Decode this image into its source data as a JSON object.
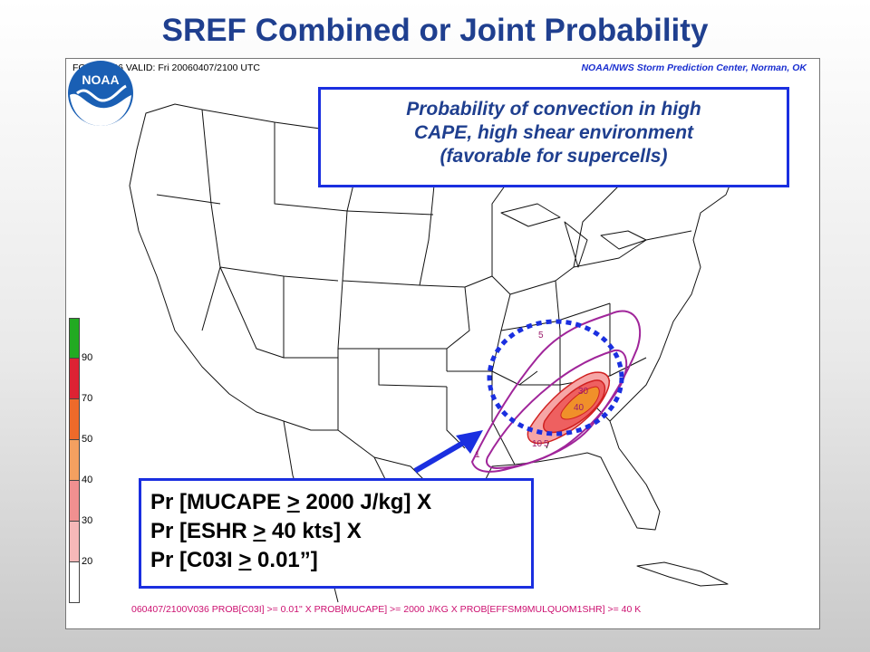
{
  "slide": {
    "title": "SREF Combined or Joint Probability"
  },
  "map": {
    "forecast_label": "FCST: F036  VALID: Fri  20060407/2100 UTC",
    "credit": "NOAA/NWS Storm Prediction Center, Norman, OK",
    "footer": "060407/2100V036 PROB[C03I] >= 0.01\" X PROB[MUCAPE] >= 2000 J/KG X PROB[EFFSM9MULQUOM1SHR] >= 40 K",
    "contour_labels": [
      "5",
      "30",
      "40",
      "10",
      "5",
      "1"
    ],
    "contour_colors": {
      "outer": "#a0259a",
      "light_fill": "#f6a6a6",
      "mid_fill": "#ee6060",
      "inner_fill": "#f0902a",
      "outline": "#d02020"
    }
  },
  "annotation": {
    "lines": [
      "Probability of convection in high",
      "CAPE, high shear environment",
      "(favorable for supercells)"
    ],
    "border_color": "#1a2fe0"
  },
  "formula": {
    "line1": {
      "pre": "Pr [MUCAPE ",
      "op": ">",
      "post": " 2000 J/kg] X"
    },
    "line2": {
      "pre": "Pr [ESHR ",
      "op": ">",
      "post": " 40 kts] X"
    },
    "line3": {
      "pre": "Pr [C03I ",
      "op": ">",
      "post": " 0.01”]"
    }
  },
  "legend": {
    "labels": [
      "90",
      "70",
      "50",
      "40",
      "30",
      "20"
    ],
    "colors": [
      "#22aa22",
      "#dd2233",
      "#ee6a2a",
      "#f4a060",
      "#f09090",
      "#f6b8b8",
      "#ffffff"
    ]
  },
  "logo": {
    "text": "NOAA"
  },
  "colors": {
    "title": "#1f3f8f",
    "highlight_dots": "#1a2fe0",
    "arrow": "#1a2fe0"
  }
}
